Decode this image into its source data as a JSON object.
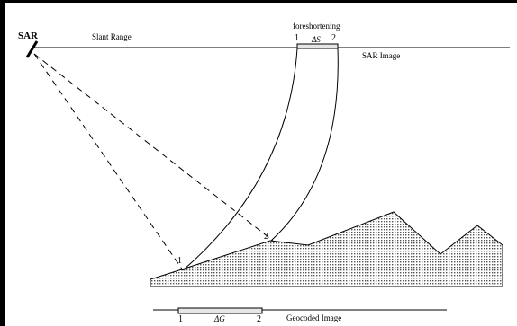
{
  "labels": {
    "sar": "SAR",
    "slant_range": "Slant Range",
    "foreshortening": "foreshortening",
    "point1_top": "1",
    "delta_s": "ΔS",
    "point2_top": "2",
    "sar_image": "SAR Image",
    "point1_terrain": "1",
    "point2_terrain": "2",
    "point1_bottom": "1",
    "delta_g": "ΔG",
    "point2_bottom": "2",
    "geocoded_image": "Geocoded Image"
  },
  "colors": {
    "line": "#000000",
    "terrain_fill": "#c8c8c8",
    "border": "#000000"
  }
}
